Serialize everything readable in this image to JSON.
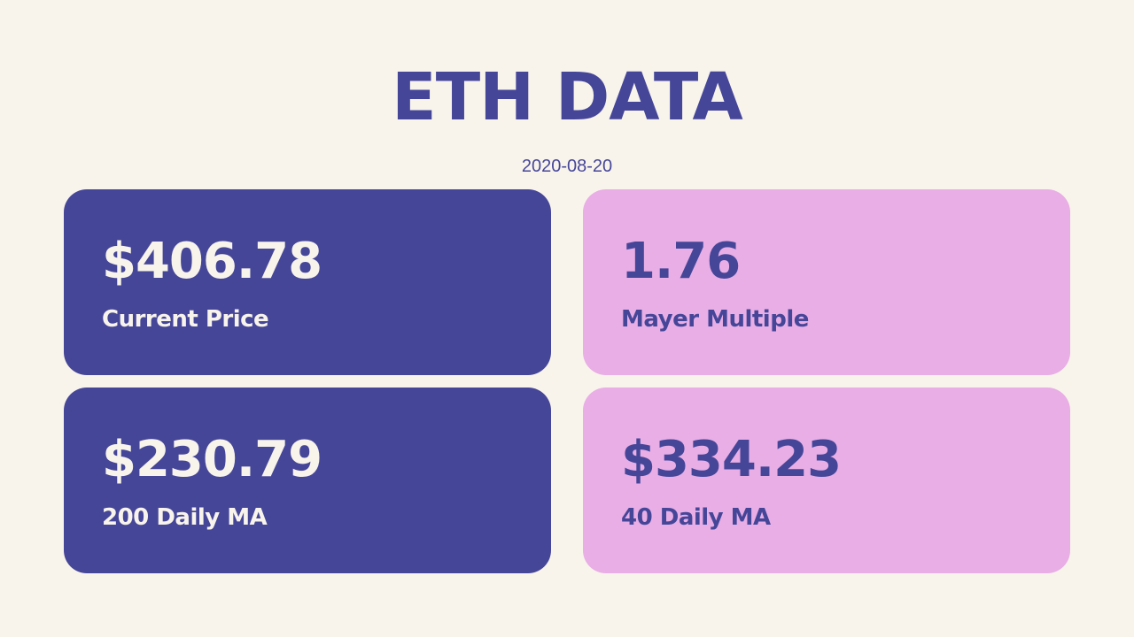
{
  "header": {
    "title": "ETH DATA",
    "date": "2020-08-20"
  },
  "cards": [
    {
      "value": "$406.78",
      "label": "Current Price"
    },
    {
      "value": "1.76",
      "label": "Mayer Multiple"
    },
    {
      "value": "$230.79",
      "label": "200 Daily MA"
    },
    {
      "value": "$334.23",
      "label": "40 Daily MA"
    }
  ],
  "colors": {
    "background": "#f8f4eb",
    "dark_card": "#464699",
    "light_card": "#e8aee5"
  }
}
